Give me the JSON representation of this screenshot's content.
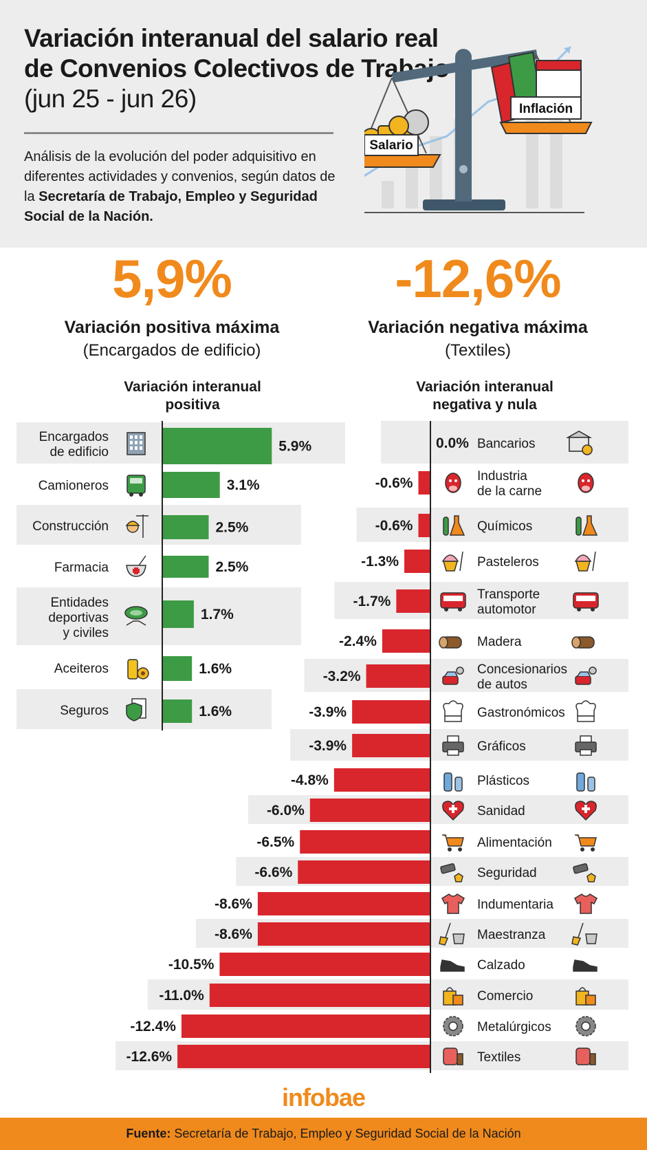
{
  "header": {
    "title_bold": "Variación interanual del salario real de Convenios Colectivos de Trabajo",
    "title_light": "(jun 25 - jun 26)",
    "intro_a": "Análisis de la evolución del poder adquisitivo en diferentes actividades y convenios, según datos de la ",
    "intro_b": "Secretaría de Trabajo, Empleo y Seguridad Social de la Nación.",
    "label_salario": "Salario",
    "label_inflacion": "Inflación"
  },
  "highlights": {
    "pos_value": "5,9%",
    "pos_label": "Variación positiva máxima",
    "pos_sub": "(Encargados de edificio)",
    "neg_value": "-12,6%",
    "neg_label": "Variación negativa máxima",
    "neg_sub": "(Textiles)"
  },
  "colors": {
    "accent": "#f08a1c",
    "positive": "#3d9b45",
    "negative": "#d8262c",
    "band": "#ececec"
  },
  "chart_data": [
    {
      "type": "bar",
      "title_line1": "Variación interanual",
      "title_line2": "positiva",
      "categories": [
        "Encargados\nde edificio",
        "Camioneros",
        "Construcción",
        "Farmacia",
        "Entidades\ndeportivas\ny civiles",
        "Aceiteros",
        "Seguros"
      ],
      "values": [
        5.9,
        3.1,
        2.5,
        2.5,
        1.7,
        1.6,
        1.6
      ],
      "value_labels": [
        "5.9%",
        "3.1%",
        "2.5%",
        "2.5%",
        "1.7%",
        "1.6%",
        "1.6%"
      ],
      "icons": [
        "building-icon",
        "truck-icon",
        "worker-crane-icon",
        "mortar-pestle-icon",
        "stadium-handshake-icon",
        "oil-sunflower-icon",
        "shield-document-icon"
      ]
    },
    {
      "type": "bar",
      "title_line1": "Variación interanual",
      "title_line2": "negativa y nula",
      "categories": [
        "Bancarios",
        "Industria\nde la carne",
        "Químicos",
        "Pasteleros",
        "Transporte\nautomotor",
        "Madera",
        "Concesionarios\nde autos",
        "Gastronómicos",
        "Gráficos",
        "Plásticos",
        "Sanidad",
        "Alimentación",
        "Seguridad",
        "Indumentaria",
        "Maestranza",
        "Calzado",
        "Comercio",
        "Metalúrgicos",
        "Textiles"
      ],
      "values": [
        0.0,
        -0.6,
        -0.6,
        -1.3,
        -1.7,
        -2.4,
        -3.2,
        -3.9,
        -3.9,
        -4.8,
        -6.0,
        -6.5,
        -6.6,
        -8.6,
        -8.6,
        -10.5,
        -11.0,
        -12.4,
        -12.6
      ],
      "value_labels": [
        "0.0%",
        "-0.6%",
        "-0.6%",
        "-1.3%",
        "-1.7%",
        "-2.4%",
        "-3.2%",
        "-3.9%",
        "-3.9%",
        "-4.8%",
        "-6.0%",
        "-6.5%",
        "-6.6%",
        "-8.6%",
        "-8.6%",
        "-10.5%",
        "-11.0%",
        "-12.4%",
        "-12.6%"
      ],
      "icons": [
        "bank-icon",
        "cow-icon",
        "flask-icon",
        "cupcake-icon",
        "bus-icon",
        "log-icon",
        "car-key-icon",
        "chef-hat-icon",
        "printer-icon",
        "bottle-icon",
        "heart-cross-icon",
        "cart-icon",
        "camera-badge-icon",
        "tshirt-icon",
        "broom-bucket-icon",
        "shoe-icon",
        "shopping-bag-icon",
        "gear-wrench-icon",
        "fabric-roll-icon"
      ]
    }
  ],
  "brand": "infobae",
  "footer": {
    "label": "Fuente:",
    "text": " Secretaría de Trabajo, Empleo y Seguridad Social de la Nación"
  }
}
